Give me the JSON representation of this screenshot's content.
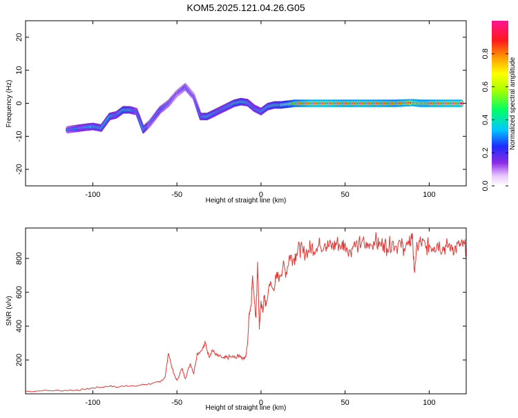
{
  "title": "KOM5.2025.121.04.26.G05",
  "colors": {
    "snr_line": "#e8322f",
    "spectrogram_base": "#ffffff"
  },
  "chart_data": [
    {
      "type": "heatmap",
      "title": "KOM5.2025.121.04.26.G05",
      "xlabel": "Height of straight line (km)",
      "ylabel": "Frequency (Hz)",
      "xlim": [
        -140,
        122
      ],
      "ylim": [
        -25,
        25
      ],
      "xticks": [
        -100,
        -50,
        0,
        50,
        100
      ],
      "yticks": [
        -20,
        -10,
        0,
        10,
        20
      ],
      "colorbar": {
        "label": "Normalized spectral amplitude",
        "range": [
          0,
          1
        ],
        "ticks": [
          0.0,
          0.2,
          0.4,
          0.6,
          0.8
        ],
        "tick_labels": [
          "0.0",
          "0.2",
          "0.4",
          "0.6",
          "0.8"
        ],
        "colormap": "rainbow (white-violet-blue-cyan-green-yellow-orange-red-magenta)"
      },
      "ridge": {
        "x": [
          -115,
          -108,
          -100,
          -95,
          -90,
          -86,
          -82,
          -78,
          -74,
          -70,
          -66,
          -60,
          -55,
          -50,
          -45,
          -40,
          -36,
          -32,
          -28,
          -24,
          -20,
          -16,
          -12,
          -8,
          -4,
          0,
          4,
          8,
          12,
          20,
          30,
          40,
          50,
          60,
          70,
          80,
          90,
          95,
          100,
          110,
          120
        ],
        "y": [
          -8,
          -7.5,
          -7,
          -7.5,
          -4,
          -3.5,
          -2,
          -2,
          -2.5,
          -8,
          -6,
          -2,
          0,
          3,
          5,
          2,
          -4,
          -4,
          -3,
          -2,
          -1,
          0,
          0.5,
          0.2,
          -1.5,
          -2.5,
          -1,
          -0.5,
          -0.5,
          0,
          0,
          0,
          0,
          0,
          0,
          0,
          0.2,
          0,
          0,
          0,
          0
        ],
        "amplitude": [
          0.3,
          0.4,
          0.45,
          0.45,
          0.5,
          0.4,
          0.55,
          0.5,
          0.35,
          0.5,
          0.3,
          0.35,
          0.3,
          0.25,
          0.3,
          0.25,
          0.4,
          0.5,
          0.45,
          0.4,
          0.45,
          0.5,
          0.55,
          0.45,
          0.4,
          0.45,
          0.5,
          0.55,
          0.6,
          0.8,
          0.95,
          0.95,
          0.9,
          0.92,
          0.9,
          0.85,
          0.95,
          0.9,
          0.9,
          0.95,
          0.95
        ]
      }
    },
    {
      "type": "line",
      "xlabel": "Height of straight line (km)",
      "ylabel": "SNR (v/v)",
      "xlim": [
        -140,
        122
      ],
      "ylim": [
        0,
        980
      ],
      "xticks": [
        -100,
        -50,
        0,
        50,
        100
      ],
      "yticks": [
        200,
        400,
        600,
        800
      ],
      "series": [
        {
          "x": [
            -140,
            -130,
            -120,
            -110,
            -105,
            -100,
            -95,
            -90,
            -85,
            -80,
            -75,
            -70,
            -65,
            -60,
            -57,
            -55,
            -52,
            -50,
            -47,
            -45,
            -42,
            -40,
            -38,
            -35,
            -33,
            -31,
            -29,
            -27,
            -25,
            -22,
            -20,
            -17,
            -15,
            -13,
            -11,
            -9,
            -8,
            -7,
            -6,
            -5,
            -3,
            -2,
            -1,
            0,
            1,
            2,
            3,
            5,
            7,
            9,
            11,
            13,
            15,
            17,
            19,
            21,
            23,
            25,
            28,
            30,
            33,
            35,
            38,
            40,
            43,
            45,
            48,
            50,
            53,
            55,
            58,
            60,
            63,
            65,
            68,
            70,
            73,
            75,
            78,
            80,
            83,
            85,
            88,
            90,
            91,
            93,
            95,
            98,
            100,
            103,
            105,
            108,
            110,
            113,
            115,
            118,
            120,
            122
          ],
          "y": [
            15,
            18,
            20,
            22,
            25,
            35,
            40,
            45,
            40,
            50,
            45,
            55,
            60,
            70,
            100,
            240,
            120,
            80,
            150,
            90,
            180,
            120,
            240,
            260,
            300,
            220,
            260,
            230,
            220,
            210,
            215,
            220,
            210,
            230,
            215,
            220,
            300,
            480,
            520,
            700,
            450,
            780,
            380,
            550,
            480,
            580,
            520,
            650,
            620,
            680,
            700,
            750,
            720,
            820,
            790,
            830,
            860,
            830,
            850,
            870,
            860,
            880,
            890,
            870,
            870,
            890,
            880,
            890,
            850,
            870,
            880,
            900,
            860,
            880,
            910,
            870,
            890,
            860,
            900,
            870,
            890,
            860,
            880,
            950,
            740,
            870,
            900,
            860,
            880,
            870,
            890,
            860,
            870,
            880,
            860,
            870,
            870,
            860
          ]
        }
      ]
    }
  ]
}
